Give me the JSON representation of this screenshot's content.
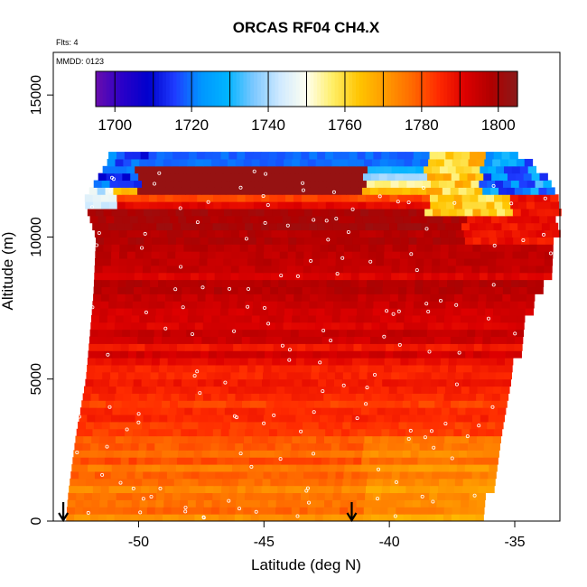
{
  "chart_data": {
    "type": "heatmap",
    "title": "ORCAS RF04 CH4.X",
    "notes": [
      "Flts: 4",
      "MMDD: 0123"
    ],
    "xlabel": "Latitude (deg N)",
    "ylabel": "Altitude (m)",
    "xlim": [
      -53.4,
      -33.2
    ],
    "ylim": [
      0,
      16500
    ],
    "x_ticks": [
      -50,
      -45,
      -40,
      -35
    ],
    "x_tick_labels": [
      "-50",
      "-45",
      "-40",
      "-35"
    ],
    "y_ticks": [
      0,
      5000,
      10000,
      15000
    ],
    "y_tick_labels": [
      "0",
      "5000",
      "10000",
      "15000"
    ],
    "colorbar": {
      "min": 1695,
      "max": 1805,
      "ticks": [
        1700,
        1720,
        1740,
        1760,
        1780,
        1800
      ],
      "tick_labels": [
        "1700",
        "1720",
        "1740",
        "1760",
        "1780",
        "1800"
      ],
      "colors": [
        "#6a0dad",
        "#2a00c8",
        "#0000cd",
        "#1e3cff",
        "#0096ff",
        "#00b4ff",
        "#7ec8ff",
        "#d0eaff",
        "#fffff0",
        "#ffee66",
        "#ffc400",
        "#ff9a00",
        "#ff6a00",
        "#ff2a00",
        "#dd0000",
        "#b00000",
        "#8b1a1a"
      ]
    },
    "arrows_at_latitude": [
      -53.0,
      -41.5
    ],
    "altitude_profile_lat": [
      -52.5,
      -50.0,
      -47.0,
      -44.0,
      -41.0,
      -39.0,
      -36.5,
      -35.0
    ],
    "altitude_profile_m": [
      300,
      2000,
      4500,
      7500,
      9800,
      11200,
      11800,
      12600
    ],
    "ch4_field_description_by_altitude_m": [
      {
        "alt": 500,
        "value": 1775
      },
      {
        "alt": 3000,
        "value": 1780
      },
      {
        "alt": 5000,
        "value": 1788
      },
      {
        "alt": 7000,
        "value": 1793
      },
      {
        "alt": 9000,
        "value": 1795
      },
      {
        "alt": 11000,
        "value": 1798
      },
      {
        "alt": 12500,
        "value": 1720
      }
    ]
  }
}
